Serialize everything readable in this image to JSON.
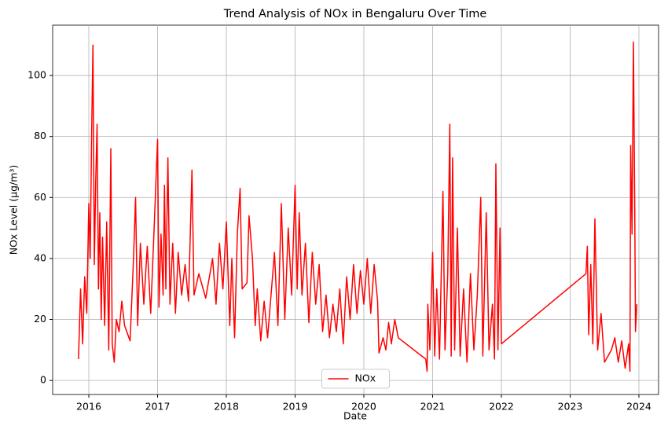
{
  "chart_data": {
    "type": "line",
    "title": "Trend Analysis of NOx in Bengaluru Over Time",
    "x_label": "Date",
    "y_label": "NOx Level (µg/m³)",
    "xlim": [
      2015.474,
      2024.286
    ],
    "xticks": [
      2016,
      2017,
      2018,
      2019,
      2020,
      2021,
      2022,
      2023,
      2024
    ],
    "ylim": [
      -4.6,
      116.5
    ],
    "yticks": [
      0,
      20,
      40,
      60,
      80,
      100
    ],
    "grid": true,
    "legend": "lower center",
    "x": [
      2015.85,
      2015.88,
      2015.91,
      2015.94,
      2015.97,
      2016.0,
      2016.02,
      2016.04,
      2016.06,
      2016.08,
      2016.1,
      2016.12,
      2016.14,
      2016.16,
      2016.18,
      2016.2,
      2016.23,
      2016.26,
      2016.29,
      2016.32,
      2016.34,
      2016.37,
      2016.4,
      2016.44,
      2016.48,
      2016.52,
      2016.6,
      2016.65,
      2016.68,
      2016.71,
      2016.75,
      2016.8,
      2016.85,
      2016.9,
      2016.95,
      2017.0,
      2017.02,
      2017.05,
      2017.08,
      2017.1,
      2017.12,
      2017.15,
      2017.18,
      2017.22,
      2017.26,
      2017.3,
      2017.35,
      2017.4,
      2017.45,
      2017.5,
      2017.53,
      2017.6,
      2017.7,
      2017.8,
      2017.85,
      2017.9,
      2017.95,
      2018.0,
      2018.05,
      2018.08,
      2018.12,
      2018.16,
      2018.2,
      2018.23,
      2018.3,
      2018.33,
      2018.38,
      2018.42,
      2018.45,
      2018.5,
      2018.55,
      2018.6,
      2018.65,
      2018.7,
      2018.75,
      2018.8,
      2018.85,
      2018.9,
      2018.95,
      2019.0,
      2019.03,
      2019.06,
      2019.1,
      2019.15,
      2019.2,
      2019.25,
      2019.3,
      2019.35,
      2019.4,
      2019.45,
      2019.5,
      2019.55,
      2019.6,
      2019.65,
      2019.7,
      2019.75,
      2019.8,
      2019.85,
      2019.9,
      2019.95,
      2020.0,
      2020.05,
      2020.1,
      2020.15,
      2020.2,
      2020.22,
      2020.28,
      2020.32,
      2020.36,
      2020.4,
      2020.45,
      2020.5,
      2020.9,
      2020.92,
      2020.93,
      2020.96,
      2021.0,
      2021.03,
      2021.06,
      2021.1,
      2021.15,
      2021.18,
      2021.22,
      2021.25,
      2021.27,
      2021.29,
      2021.32,
      2021.36,
      2021.4,
      2021.45,
      2021.5,
      2021.55,
      2021.6,
      2021.65,
      2021.7,
      2021.73,
      2021.78,
      2021.82,
      2021.87,
      2021.9,
      2021.92,
      2021.95,
      2021.98,
      2022.0,
      2023.23,
      2023.25,
      2023.27,
      2023.3,
      2023.33,
      2023.36,
      2023.4,
      2023.45,
      2023.5,
      2023.6,
      2023.65,
      2023.7,
      2023.75,
      2023.8,
      2023.85,
      2023.87,
      2023.88,
      2023.9,
      2023.92,
      2023.94,
      2023.95,
      2023.97
    ],
    "series": [
      {
        "name": "NOx",
        "color": "#ff0000",
        "values": [
          7,
          30,
          12,
          34,
          22,
          58,
          40,
          79,
          110,
          38,
          65,
          84,
          30,
          55,
          20,
          47,
          18,
          52,
          10,
          76,
          12,
          6,
          20,
          16,
          26,
          18,
          13,
          40,
          60,
          18,
          45,
          25,
          44,
          22,
          50,
          79,
          24,
          48,
          28,
          64,
          30,
          73,
          25,
          45,
          22,
          42,
          28,
          38,
          26,
          69,
          28,
          35,
          27,
          40,
          25,
          45,
          30,
          52,
          18,
          40,
          14,
          48,
          63,
          30,
          32,
          54,
          40,
          18,
          30,
          13,
          26,
          14,
          28,
          42,
          18,
          58,
          20,
          50,
          28,
          64,
          30,
          55,
          28,
          45,
          19,
          42,
          25,
          38,
          16,
          28,
          14,
          25,
          16,
          30,
          12,
          34,
          20,
          38,
          22,
          36,
          25,
          40,
          22,
          38,
          26,
          9,
          14,
          10,
          19,
          12,
          20,
          14,
          7,
          3,
          25,
          10,
          42,
          8,
          30,
          7,
          62,
          10,
          35,
          84,
          8,
          73,
          10,
          50,
          8,
          30,
          6,
          35,
          10,
          28,
          60,
          8,
          55,
          10,
          25,
          7,
          71,
          10,
          50,
          12,
          35,
          44,
          15,
          38,
          12,
          53,
          10,
          22,
          6,
          10,
          14,
          6,
          13,
          4,
          12,
          3,
          77,
          48,
          111,
          55,
          16,
          25
        ]
      }
    ]
  }
}
